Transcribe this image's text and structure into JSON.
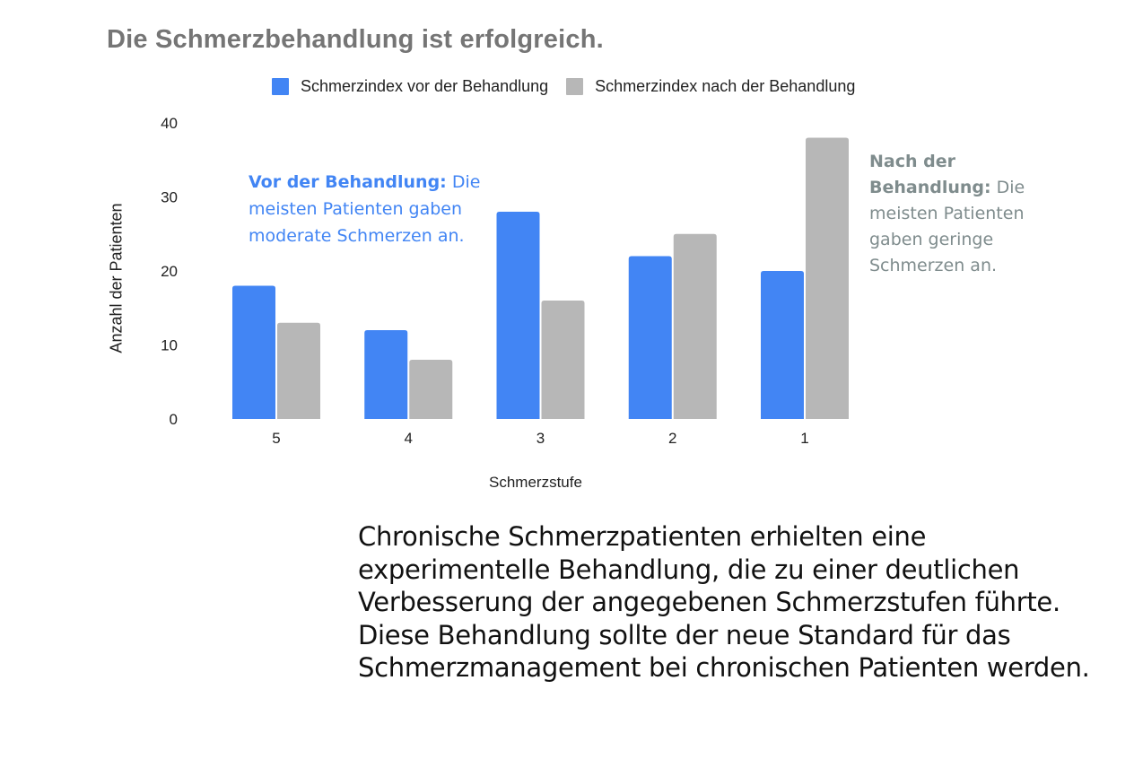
{
  "chart_data": {
    "type": "bar",
    "title": "Die Schmerzbehandlung ist erfolgreich.",
    "xlabel": "Schmerzstufe",
    "ylabel": "Anzahl der Patienten",
    "categories": [
      "5",
      "4",
      "3",
      "2",
      "1"
    ],
    "series": [
      {
        "name": "Schmerzindex vor der Behandlung",
        "color": "#4285f4",
        "values": [
          18,
          12,
          28,
          22,
          20
        ]
      },
      {
        "name": "Schmerzindex nach der Behandlung",
        "color": "#b7b7b7",
        "values": [
          13,
          8,
          16,
          25,
          38
        ]
      }
    ],
    "ylim": [
      0,
      40
    ],
    "yticks": [
      0,
      10,
      20,
      30,
      40
    ],
    "grid": false,
    "legend": "top",
    "annotations": [
      {
        "bold": "Vor der Behandlung:",
        "text": " Die meisten Patienten gaben moderate Schmerzen an.",
        "color": "#4285f4"
      },
      {
        "bold": "Nach der Behandlung:",
        "text": " Die meisten Patienten gaben geringe Schmerzen an.",
        "color": "#7f8c8d"
      }
    ]
  },
  "description": "Chronische Schmerzpatienten erhielten eine experimentelle Behandlung, die zu einer deutlichen Verbesserung der angegebenen Schmerzstufen führte. Diese Behandlung sollte der neue Standard für das Schmerzmanagement bei chronischen Patienten werden."
}
